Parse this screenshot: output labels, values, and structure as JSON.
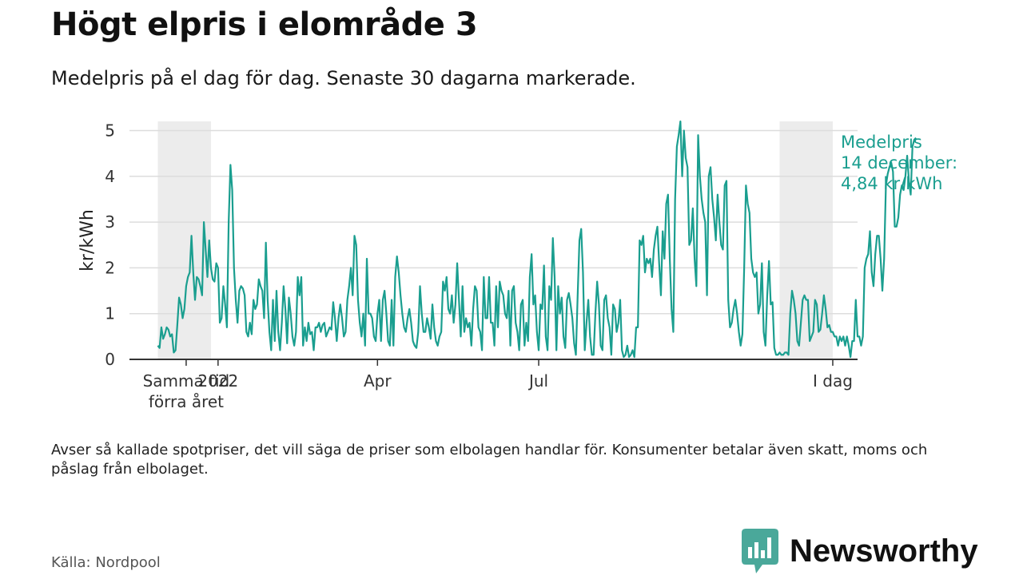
{
  "title": "Högt elpris i elområde 3",
  "subtitle": "Medelpris på el dag för dag.  Senaste 30 dagarna markerade.",
  "footnote": "Avser så kallade spotpriser, det vill säga de priser som elbolagen handlar för. Konsumenter betalar även skatt, moms och påslag från elbolaget.",
  "source": "Källa: Nordpool",
  "brand": {
    "name": "Newsworthy",
    "color": "#4aa89a"
  },
  "colors": {
    "line": "#1a9e8f",
    "highlight": "#ececec",
    "grid": "#dddddd",
    "axis": "#333333"
  },
  "chart_data": {
    "type": "line",
    "ylabel": "kr/kWh",
    "ylim": [
      0,
      5.2
    ],
    "yticks": [
      0,
      1,
      2,
      3,
      4,
      5
    ],
    "xlim": [
      "2021-11-12",
      "2022-12-28"
    ],
    "xticks": [
      {
        "date": "2021-12-14",
        "label": [
          "Samma tid",
          "förra året"
        ]
      },
      {
        "date": "2022-01-01",
        "label": [
          "2022"
        ]
      },
      {
        "date": "2022-04-01",
        "label": [
          "Apr"
        ]
      },
      {
        "date": "2022-07-01",
        "label": [
          "Jul"
        ]
      },
      {
        "date": "2022-12-14",
        "label": [
          "I dag"
        ]
      }
    ],
    "highlights": [
      {
        "start": "2021-11-28",
        "end": "2021-12-28"
      },
      {
        "start": "2022-11-14",
        "end": "2022-12-14"
      }
    ],
    "annotation": {
      "lines": [
        "Medelpris",
        "14 december:",
        "4,84 kr/kWh"
      ],
      "date": "2022-12-14",
      "value": 4.84
    },
    "series": [
      {
        "start": "2021-11-28",
        "values": [
          0.3,
          0.25,
          0.7,
          0.45,
          0.55,
          0.7,
          0.65,
          0.5,
          0.55,
          0.15,
          0.2,
          0.75,
          1.35,
          1.2,
          0.9,
          1.1,
          1.6,
          1.8,
          1.9,
          2.7,
          1.9,
          1.3,
          1.8,
          1.75,
          1.6,
          1.4,
          3.0,
          2.4,
          1.8,
          2.6,
          2.0,
          1.75,
          1.7,
          2.1,
          2.0,
          0.8,
          0.9,
          1.6,
          1.2,
          0.7,
          3.0,
          4.25,
          3.7,
          2.0,
          1.3,
          0.8,
          1.5,
          1.6,
          1.55,
          1.4,
          0.6,
          0.5,
          0.8,
          0.55,
          1.3,
          1.1,
          1.2,
          1.75,
          1.6,
          1.5,
          0.9,
          2.55,
          1.3,
          0.6,
          0.2,
          1.3,
          0.4,
          1.5,
          0.6,
          0.2,
          0.8,
          1.6,
          1.1,
          0.35,
          1.35,
          1.0,
          0.5,
          0.3,
          0.6,
          1.8,
          1.4,
          1.8,
          0.3,
          0.7,
          0.4,
          0.8,
          0.55,
          0.6,
          0.2,
          0.7,
          0.7,
          0.8,
          0.6,
          0.75,
          0.8,
          0.5,
          0.6,
          0.7,
          0.65,
          1.25,
          0.9,
          0.4,
          0.9,
          1.2,
          0.9,
          0.5,
          0.6,
          1.3,
          1.6,
          2.0,
          1.4,
          2.7,
          2.5,
          1.3,
          0.8,
          0.5,
          1.0,
          0.3,
          2.2,
          1.0,
          1.0,
          0.9,
          0.5,
          0.4,
          1.0,
          1.3,
          0.4,
          1.3,
          1.5,
          1.0,
          0.4,
          0.3,
          1.3,
          0.3,
          1.8,
          2.25,
          1.9,
          1.4,
          1.0,
          0.7,
          0.6,
          0.9,
          1.1,
          0.8,
          0.4,
          0.3,
          0.25,
          0.6,
          1.6,
          1.0,
          0.6,
          0.6,
          0.9,
          0.7,
          0.45,
          1.2,
          0.7,
          0.4,
          0.3,
          0.5,
          0.6,
          1.7,
          1.5,
          1.8,
          1.1,
          1.0,
          1.4,
          0.8,
          1.2,
          2.1,
          1.3,
          0.5,
          1.6,
          0.6,
          0.9,
          0.7,
          0.8,
          0.3,
          1.1,
          1.6,
          1.5,
          0.7,
          0.6,
          0.2,
          1.8,
          0.9,
          0.9,
          1.8,
          0.8,
          0.8,
          0.3,
          1.6,
          0.7,
          1.7,
          1.5,
          1.4,
          1.0,
          0.9,
          1.5,
          0.3,
          1.5,
          1.6,
          0.8,
          0.6,
          0.2,
          1.2,
          1.3,
          0.3,
          0.8,
          0.4,
          1.8,
          2.3,
          1.2,
          1.4,
          0.6,
          0.2,
          1.2,
          1.1,
          2.05,
          0.5,
          0.2,
          1.6,
          1.3,
          2.65,
          1.8,
          0.2,
          1.6,
          1.0,
          1.35,
          0.5,
          0.25,
          1.3,
          1.45,
          1.2,
          0.9,
          0.35,
          0.1,
          1.4,
          2.6,
          2.85,
          1.9,
          0.2,
          0.8,
          1.3,
          0.5,
          0.1,
          0.1,
          1.0,
          1.7,
          1.2,
          0.3,
          0.2,
          1.3,
          1.4,
          0.9,
          0.7,
          0.1,
          1.2,
          1.1,
          0.6,
          0.8,
          1.3,
          0.2,
          0.05,
          0.1,
          0.3,
          0.05,
          0.1,
          0.2,
          0.05,
          0.7,
          0.7,
          2.6,
          2.5,
          2.7,
          1.9,
          2.2,
          2.1,
          2.2,
          1.8,
          2.4,
          2.7,
          2.9,
          2.1,
          1.4,
          2.8,
          2.2,
          3.4,
          3.6,
          2.2,
          1.1,
          0.6,
          3.5,
          4.65,
          4.9,
          5.2,
          4.0,
          5.0,
          4.4,
          4.2,
          2.5,
          2.6,
          3.3,
          2.2,
          1.6,
          4.9,
          4.0,
          3.5,
          3.2,
          3.0,
          1.4,
          4.0,
          4.2,
          3.5,
          3.1,
          2.6,
          3.6,
          3.0,
          2.5,
          2.4,
          3.8,
          3.9,
          1.3,
          0.7,
          0.8,
          1.1,
          1.3,
          1.0,
          0.6,
          0.3,
          0.55,
          2.0,
          3.8,
          3.4,
          3.2,
          2.2,
          1.9,
          1.8,
          1.9,
          1.0,
          1.2,
          2.1,
          0.6,
          0.3,
          1.4,
          2.15,
          1.2,
          1.25,
          0.25,
          0.1,
          0.1,
          0.15,
          0.1,
          0.1,
          0.15,
          0.15,
          0.1,
          1.0,
          1.5,
          1.3,
          1.0,
          0.4,
          0.3,
          0.8,
          1.3,
          1.4,
          1.3,
          1.3,
          0.4,
          0.5,
          0.6,
          1.3,
          1.2,
          0.6,
          0.65,
          1.0,
          1.4,
          1.1,
          0.7,
          0.75,
          0.6,
          0.6,
          0.5,
          0.5,
          0.3,
          0.5,
          0.4,
          0.5,
          0.3,
          0.5,
          0.3,
          0.05,
          0.4,
          0.4,
          1.3,
          0.5,
          0.5,
          0.3,
          0.5,
          2.0,
          2.2,
          2.3,
          2.8,
          1.9,
          1.6,
          2.3,
          2.7,
          2.7,
          2.2,
          1.5,
          2.2,
          3.8,
          4.05,
          4.2,
          4.3,
          4.1,
          2.9,
          2.9,
          3.1,
          3.6,
          3.8,
          3.7,
          4.0,
          4.45,
          3.9,
          3.6,
          4.65,
          4.8,
          4.84
        ]
      }
    ]
  }
}
